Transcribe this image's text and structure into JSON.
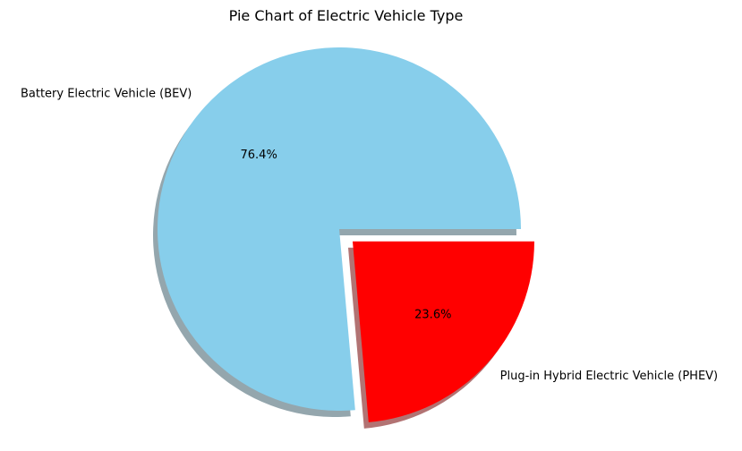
{
  "chart_data": {
    "type": "pie",
    "title": "Pie Chart of Electric Vehicle Type",
    "slices": [
      {
        "label": "Battery Electric Vehicle (BEV)",
        "value": 76.4,
        "pct_label": "76.4%",
        "color": "#87ceeb",
        "explode": 0
      },
      {
        "label": "Plug-in Hybrid Electric Vehicle (PHEV)",
        "value": 23.6,
        "pct_label": "23.6%",
        "color": "#ff0000",
        "explode": 0.1
      }
    ],
    "start_angle": 0,
    "counterclock": true,
    "shadow": true,
    "legend": "none"
  }
}
